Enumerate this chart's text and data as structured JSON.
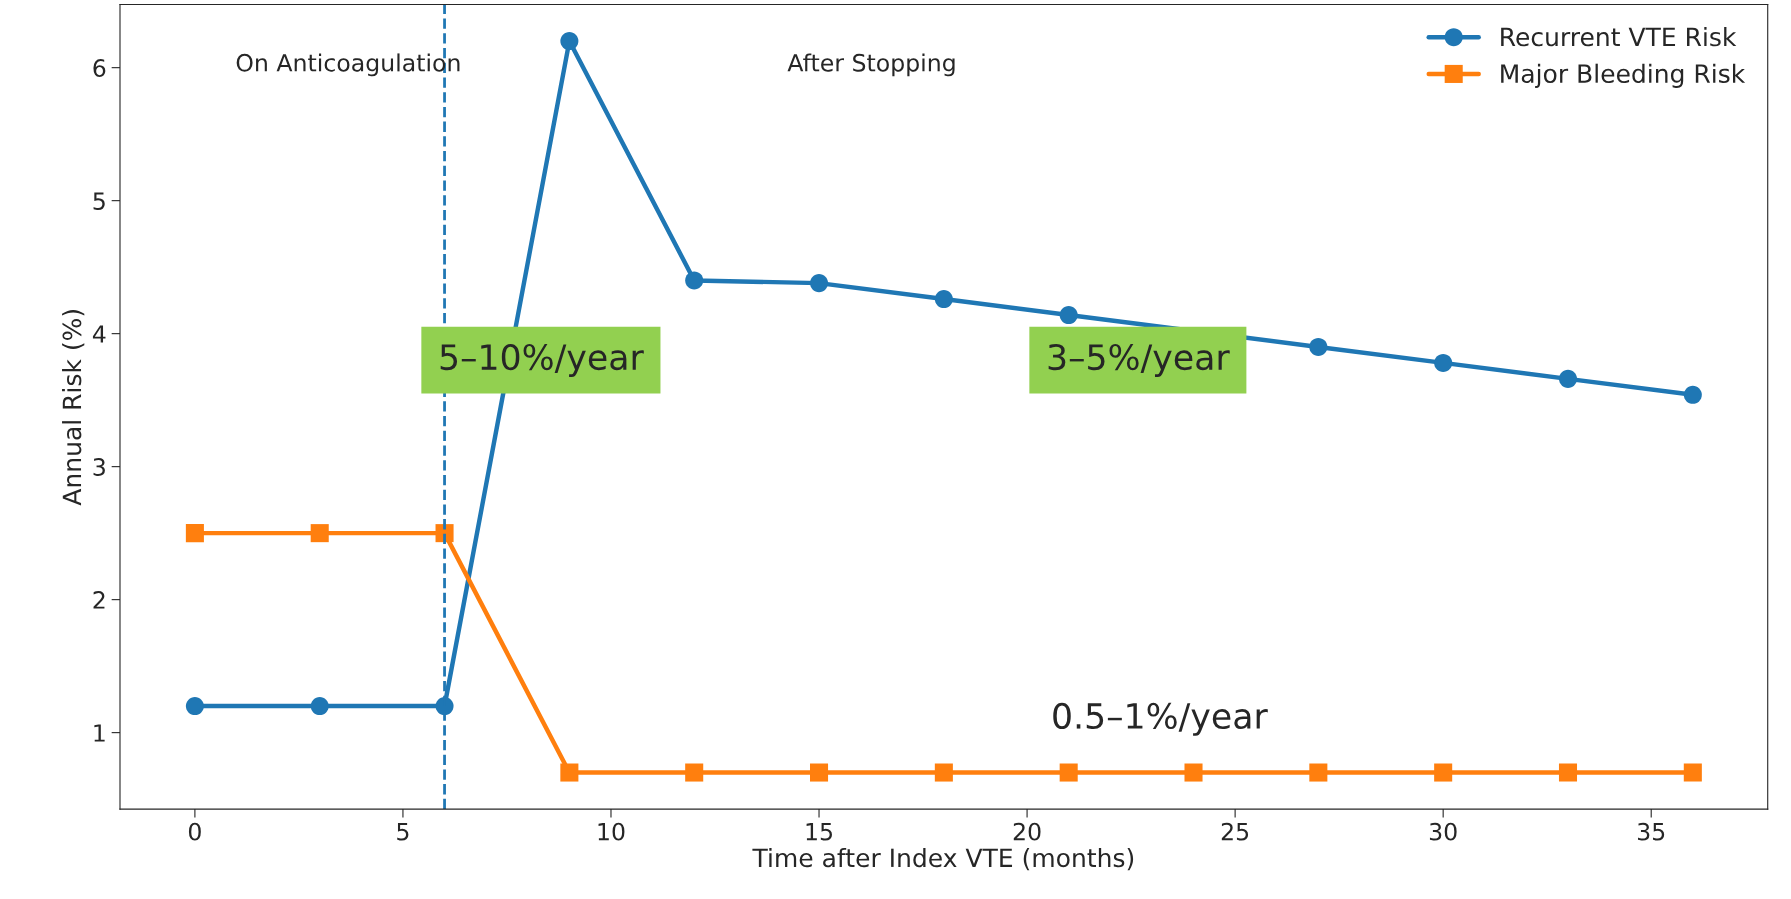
{
  "chart_data": {
    "type": "line",
    "xlabel": "Time after Index VTE (months)",
    "ylabel": "Annual Risk (%)",
    "x": [
      0,
      3,
      6,
      9,
      12,
      15,
      18,
      21,
      24,
      27,
      30,
      33,
      36
    ],
    "series": [
      {
        "name": "Recurrent VTE Risk",
        "color": "#1f77b4",
        "marker": "circle",
        "values": [
          1.2,
          1.2,
          1.2,
          6.2,
          4.4,
          4.38,
          4.26,
          4.14,
          null,
          3.9,
          3.78,
          3.66,
          3.54
        ]
      },
      {
        "name": "Major Bleeding Risk",
        "color": "#ff7f0e",
        "marker": "square",
        "values": [
          2.5,
          2.5,
          2.5,
          0.7,
          0.7,
          0.7,
          0.7,
          0.7,
          0.7,
          0.7,
          0.7,
          0.7,
          0.7
        ]
      }
    ],
    "xlim": [
      -1.8,
      37.8
    ],
    "ylim": [
      0.425,
      6.475
    ],
    "xticks": [
      0,
      5,
      10,
      15,
      20,
      25,
      30,
      35
    ],
    "yticks": [
      1,
      2,
      3,
      4,
      5,
      6
    ],
    "ref_lines": [
      {
        "axis": "x",
        "value": 6,
        "color": "#1f77b4",
        "line_style": "dashed"
      }
    ],
    "annotations": [
      "On Anticoagulation",
      "After Stopping",
      "5–10%/year",
      "3–5%/year",
      "0.5–1%/year"
    ],
    "legend": "top right",
    "grid": false
  }
}
